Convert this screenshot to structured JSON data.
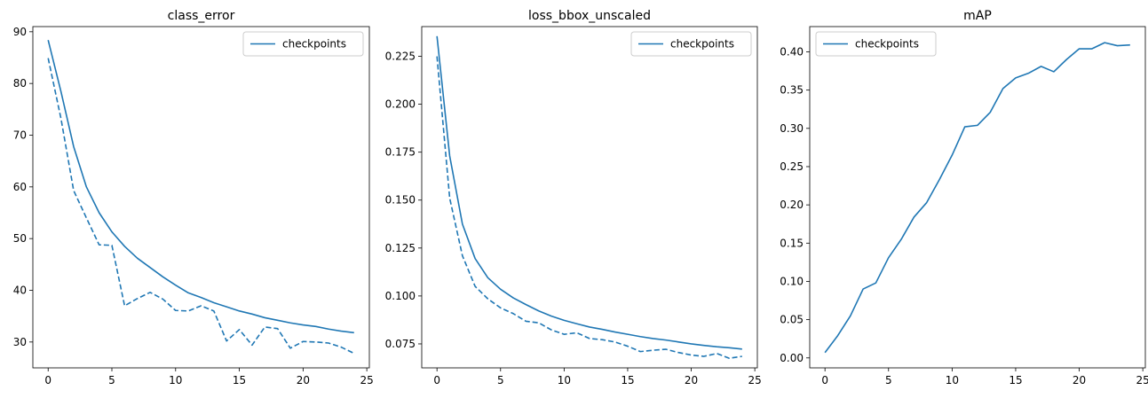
{
  "chart_data": [
    {
      "type": "line",
      "title": "class_error",
      "xlabel": "",
      "ylabel": "",
      "xlim": [
        -1.2,
        25.2
      ],
      "ylim": [
        25,
        91
      ],
      "xticks": [
        0,
        5,
        10,
        15,
        20,
        25
      ],
      "yticks": [
        30,
        40,
        50,
        60,
        70,
        80,
        90
      ],
      "ytick_labels": [
        "30",
        "40",
        "50",
        "60",
        "70",
        "80",
        "90"
      ],
      "legend": {
        "position": "top-right",
        "entries": [
          "checkpoints"
        ]
      },
      "color": "#1f77b4",
      "series": [
        {
          "name": "checkpoints",
          "style": "solid",
          "x": [
            0,
            1,
            2,
            3,
            4,
            5,
            6,
            7,
            8,
            9,
            10,
            11,
            12,
            13,
            14,
            15,
            16,
            17,
            18,
            19,
            20,
            21,
            22,
            23,
            24
          ],
          "y": [
            88.4,
            78.5,
            67.8,
            60.0,
            55.0,
            51.3,
            48.5,
            46.2,
            44.4,
            42.6,
            41.0,
            39.5,
            38.6,
            37.6,
            36.8,
            36.0,
            35.4,
            34.7,
            34.2,
            33.7,
            33.3,
            33.0,
            32.5,
            32.1,
            31.8
          ]
        },
        {
          "style": "dashed",
          "x": [
            0,
            1,
            2,
            3,
            4,
            5,
            6,
            7,
            8,
            9,
            10,
            11,
            12,
            13,
            14,
            15,
            16,
            17,
            18,
            19,
            20,
            21,
            22,
            23,
            24
          ],
          "y": [
            84.9,
            73.3,
            59.3,
            54.0,
            48.8,
            48.7,
            37.0,
            38.4,
            39.6,
            38.3,
            36.1,
            36.0,
            37.0,
            36.0,
            30.2,
            32.4,
            29.4,
            32.9,
            32.6,
            28.8,
            30.1,
            30.0,
            29.8,
            29.0,
            27.8
          ]
        }
      ]
    },
    {
      "type": "line",
      "title": "loss_bbox_unscaled",
      "xlabel": "",
      "ylabel": "",
      "xlim": [
        -1.2,
        25.2
      ],
      "ylim": [
        0.0625,
        0.2405
      ],
      "xticks": [
        0,
        5,
        10,
        15,
        20,
        25
      ],
      "yticks": [
        0.075,
        0.1,
        0.125,
        0.15,
        0.175,
        0.2,
        0.225
      ],
      "ytick_labels": [
        "0.075",
        "0.100",
        "0.125",
        "0.150",
        "0.175",
        "0.200",
        "0.225"
      ],
      "legend": {
        "position": "top-right",
        "entries": [
          "checkpoints"
        ]
      },
      "color": "#1f77b4",
      "series": [
        {
          "name": "checkpoints",
          "style": "solid",
          "x": [
            0,
            1,
            2,
            3,
            4,
            5,
            6,
            7,
            8,
            9,
            10,
            11,
            12,
            13,
            14,
            15,
            16,
            17,
            18,
            19,
            20,
            21,
            22,
            23,
            24
          ],
          "y": [
            0.2355,
            0.173,
            0.1375,
            0.1195,
            0.1095,
            0.1035,
            0.099,
            0.0955,
            0.0922,
            0.0895,
            0.0873,
            0.0855,
            0.0838,
            0.0826,
            0.0812,
            0.08,
            0.0788,
            0.0778,
            0.077,
            0.076,
            0.075,
            0.0742,
            0.0735,
            0.073,
            0.0723
          ]
        },
        {
          "style": "dashed",
          "x": [
            0,
            1,
            2,
            3,
            4,
            5,
            6,
            7,
            8,
            9,
            10,
            11,
            12,
            13,
            14,
            15,
            16,
            17,
            18,
            19,
            20,
            21,
            22,
            23,
            24
          ],
          "y": [
            0.225,
            0.151,
            0.121,
            0.105,
            0.0985,
            0.0938,
            0.0908,
            0.0868,
            0.086,
            0.0823,
            0.08,
            0.0808,
            0.0778,
            0.0772,
            0.076,
            0.0738,
            0.071,
            0.0717,
            0.0722,
            0.0705,
            0.0692,
            0.0685,
            0.07,
            0.0675,
            0.0685
          ]
        }
      ]
    },
    {
      "type": "line",
      "title": "mAP",
      "xlabel": "",
      "ylabel": "",
      "xlim": [
        -1.2,
        25.2
      ],
      "ylim": [
        -0.013,
        0.433
      ],
      "xticks": [
        0,
        5,
        10,
        15,
        20,
        25
      ],
      "yticks": [
        0.0,
        0.05,
        0.1,
        0.15,
        0.2,
        0.25,
        0.3,
        0.35,
        0.4
      ],
      "ytick_labels": [
        "0.00",
        "0.05",
        "0.10",
        "0.15",
        "0.20",
        "0.25",
        "0.30",
        "0.35",
        "0.40"
      ],
      "legend": {
        "position": "top-left",
        "entries": [
          "checkpoints"
        ]
      },
      "color": "#1f77b4",
      "series": [
        {
          "name": "checkpoints",
          "style": "solid",
          "x": [
            0,
            1,
            2,
            3,
            4,
            5,
            6,
            7,
            8,
            9,
            10,
            11,
            12,
            13,
            14,
            15,
            16,
            17,
            18,
            19,
            20,
            21,
            22,
            23,
            24
          ],
          "y": [
            0.007,
            0.029,
            0.055,
            0.09,
            0.098,
            0.131,
            0.155,
            0.184,
            0.203,
            0.233,
            0.265,
            0.302,
            0.304,
            0.321,
            0.352,
            0.366,
            0.372,
            0.381,
            0.374,
            0.39,
            0.404,
            0.404,
            0.412,
            0.408,
            0.409
          ]
        }
      ]
    }
  ]
}
